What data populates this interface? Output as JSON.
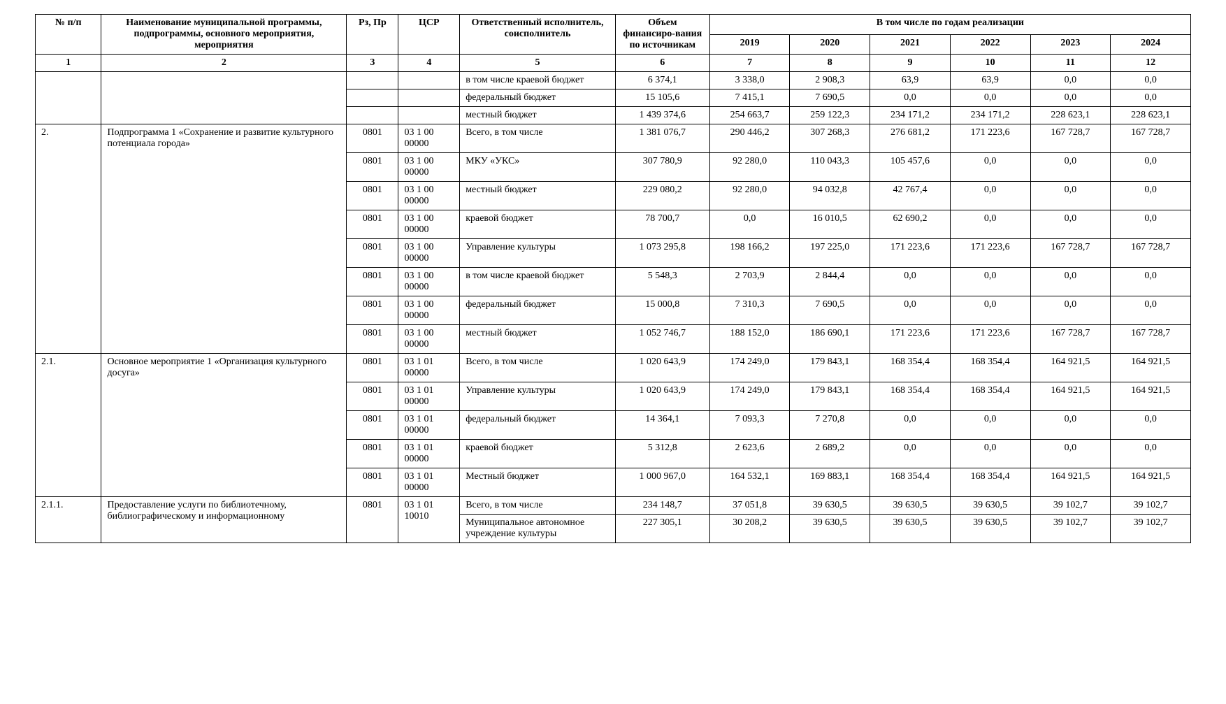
{
  "headers": {
    "num": "№ п/п",
    "name": "Наименование муниципальной программы, подпрограммы, основного мероприятия, мероприятия",
    "rz": "Рз, Пр",
    "csr": "ЦСР",
    "resp": "Ответственный исполнитель, соисполнитель",
    "vol": "Объем финансиро-вания по источникам",
    "years_span": "В том числе по годам реализации",
    "y2019": "2019",
    "y2020": "2020",
    "y2021": "2021",
    "y2022": "2022",
    "y2023": "2023",
    "y2024": "2024"
  },
  "colnums": [
    "1",
    "2",
    "3",
    "4",
    "5",
    "6",
    "7",
    "8",
    "9",
    "10",
    "11",
    "12"
  ],
  "pre_rows": [
    {
      "rz": "",
      "csr": "",
      "resp": "в том числе краевой бюджет",
      "vol": "6 374,1",
      "v": [
        "3 338,0",
        "2 908,3",
        "63,9",
        "63,9",
        "0,0",
        "0,0"
      ]
    },
    {
      "rz": "",
      "csr": "",
      "resp": "федеральный бюджет",
      "vol": "15 105,6",
      "v": [
        "7 415,1",
        "7 690,5",
        "0,0",
        "0,0",
        "0,0",
        "0,0"
      ]
    },
    {
      "rz": "",
      "csr": "",
      "resp": "местный бюджет",
      "vol": "1 439 374,6",
      "v": [
        "254 663,7",
        "259 122,3",
        "234 171,2",
        "234 171,2",
        "228 623,1",
        "228 623,1"
      ]
    }
  ],
  "sec2": {
    "num": "2.",
    "name": "Подпрограмма 1 «Сохранение и развитие культурного потенциала города»",
    "rows": [
      {
        "rz": "0801",
        "csr": "03 1 00 00000",
        "resp": "Всего, в том числе",
        "vol": "1 381 076,7",
        "v": [
          "290 446,2",
          "307 268,3",
          "276 681,2",
          "171 223,6",
          "167 728,7",
          "167 728,7"
        ]
      },
      {
        "rz": "0801",
        "csr": "03 1 00 00000",
        "resp": "МКУ «УКС»",
        "vol": "307 780,9",
        "v": [
          "92 280,0",
          "110 043,3",
          "105 457,6",
          "0,0",
          "0,0",
          "0,0"
        ]
      },
      {
        "rz": "0801",
        "csr": "03 1 00 00000",
        "resp": "местный бюджет",
        "vol": "229 080,2",
        "v": [
          "92 280,0",
          "94 032,8",
          "42 767,4",
          "0,0",
          "0,0",
          "0,0"
        ]
      },
      {
        "rz": "0801",
        "csr": "03 1 00 00000",
        "resp": "краевой бюджет",
        "vol": "78 700,7",
        "v": [
          "0,0",
          "16 010,5",
          "62 690,2",
          "0,0",
          "0,0",
          "0,0"
        ]
      },
      {
        "rz": "0801",
        "csr": "03 1 00 00000",
        "resp": "Управление культуры",
        "vol": "1 073 295,8",
        "v": [
          "198 166,2",
          "197 225,0",
          "171 223,6",
          "171 223,6",
          "167 728,7",
          "167 728,7"
        ]
      },
      {
        "rz": "0801",
        "csr": "03 1 00 00000",
        "resp": "в том числе краевой бюджет",
        "vol": "5 548,3",
        "v": [
          "2 703,9",
          "2 844,4",
          "0,0",
          "0,0",
          "0,0",
          "0,0"
        ]
      },
      {
        "rz": "0801",
        "csr": "03 1 00 00000",
        "resp": "федеральный бюджет",
        "vol": "15 000,8",
        "v": [
          "7 310,3",
          "7 690,5",
          "0,0",
          "0,0",
          "0,0",
          "0,0"
        ]
      },
      {
        "rz": "0801",
        "csr": "03 1 00 00000",
        "resp": "местный бюджет",
        "vol": "1 052 746,7",
        "v": [
          "188 152,0",
          "186 690,1",
          "171 223,6",
          "171 223,6",
          "167 728,7",
          "167 728,7"
        ]
      }
    ]
  },
  "sec21": {
    "num": "2.1.",
    "name": "Основное мероприятие 1 «Организация культурного досуга»",
    "rows": [
      {
        "rz": "0801",
        "csr": "03 1 01 00000",
        "resp": "Всего, в том числе",
        "vol": "1 020 643,9",
        "v": [
          "174 249,0",
          "179 843,1",
          "168 354,4",
          "168 354,4",
          "164 921,5",
          "164 921,5"
        ]
      },
      {
        "rz": "0801",
        "csr": "03 1 01 00000",
        "resp": "Управление культуры",
        "vol": "1 020 643,9",
        "v": [
          "174 249,0",
          "179 843,1",
          "168 354,4",
          "168 354,4",
          "164 921,5",
          "164 921,5"
        ]
      },
      {
        "rz": "0801",
        "csr": "03 1 01 00000",
        "resp": "федеральный бюджет",
        "vol": "14 364,1",
        "v": [
          "7 093,3",
          "7 270,8",
          "0,0",
          "0,0",
          "0,0",
          "0,0"
        ]
      },
      {
        "rz": "0801",
        "csr": "03 1 01 00000",
        "resp": "краевой бюджет",
        "vol": "5 312,8",
        "v": [
          "2 623,6",
          "2 689,2",
          "0,0",
          "0,0",
          "0,0",
          "0,0"
        ]
      },
      {
        "rz": "0801",
        "csr": "03 1 01 00000",
        "resp": "Местный бюджет",
        "vol": "1 000 967,0",
        "v": [
          "164 532,1",
          "169 883,1",
          "168 354,4",
          "168 354,4",
          "164 921,5",
          "164 921,5"
        ]
      }
    ]
  },
  "sec211": {
    "num": "2.1.1.",
    "name": "Предоставление услуги по библиотечному, библиографическому и информационному",
    "rows": [
      {
        "rz": "0801",
        "csr": "03 1 01 10010",
        "resp": "Всего, в том числе",
        "vol": "234 148,7",
        "v": [
          "37 051,8",
          "39 630,5",
          "39 630,5",
          "39 630,5",
          "39 102,7",
          "39 102,7"
        ]
      },
      {
        "rz": "",
        "csr": "",
        "resp": "Муниципальное автономное учреждение культуры",
        "vol": "227 305,1",
        "v": [
          "30 208,2",
          "39 630,5",
          "39 630,5",
          "39 630,5",
          "39 102,7",
          "39 102,7"
        ]
      }
    ]
  }
}
